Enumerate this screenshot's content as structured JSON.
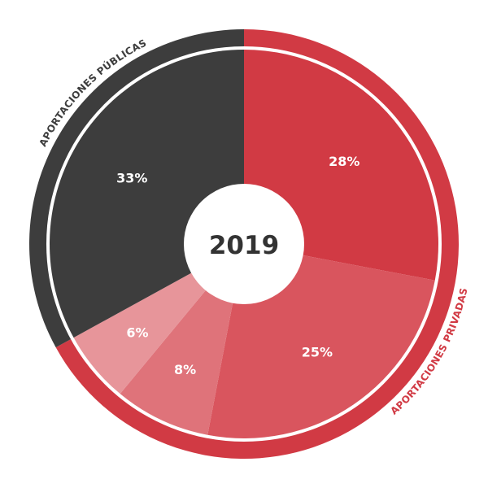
{
  "chart_data": {
    "type": "pie",
    "center_label": "2019",
    "slices": [
      {
        "label": "28%",
        "value": 28,
        "color": "#d13a44",
        "group": "private"
      },
      {
        "label": "25%",
        "value": 25,
        "color": "#d9555e",
        "group": "private"
      },
      {
        "label": "8%",
        "value": 8,
        "color": "#df737a",
        "group": "private"
      },
      {
        "label": "6%",
        "value": 6,
        "color": "#e7959a",
        "group": "private"
      },
      {
        "label": "33%",
        "value": 33,
        "color": "#3d3d3d",
        "group": "public"
      }
    ],
    "groups": [
      {
        "id": "private",
        "label": "APORTACIONES PRIVADAS",
        "color": "#d13a44",
        "text_color": "#d13a44"
      },
      {
        "id": "public",
        "label": "APORTACIONES PÚBLICAS",
        "color": "#3d3d3d",
        "text_color": "#3d3d3d"
      }
    ]
  }
}
